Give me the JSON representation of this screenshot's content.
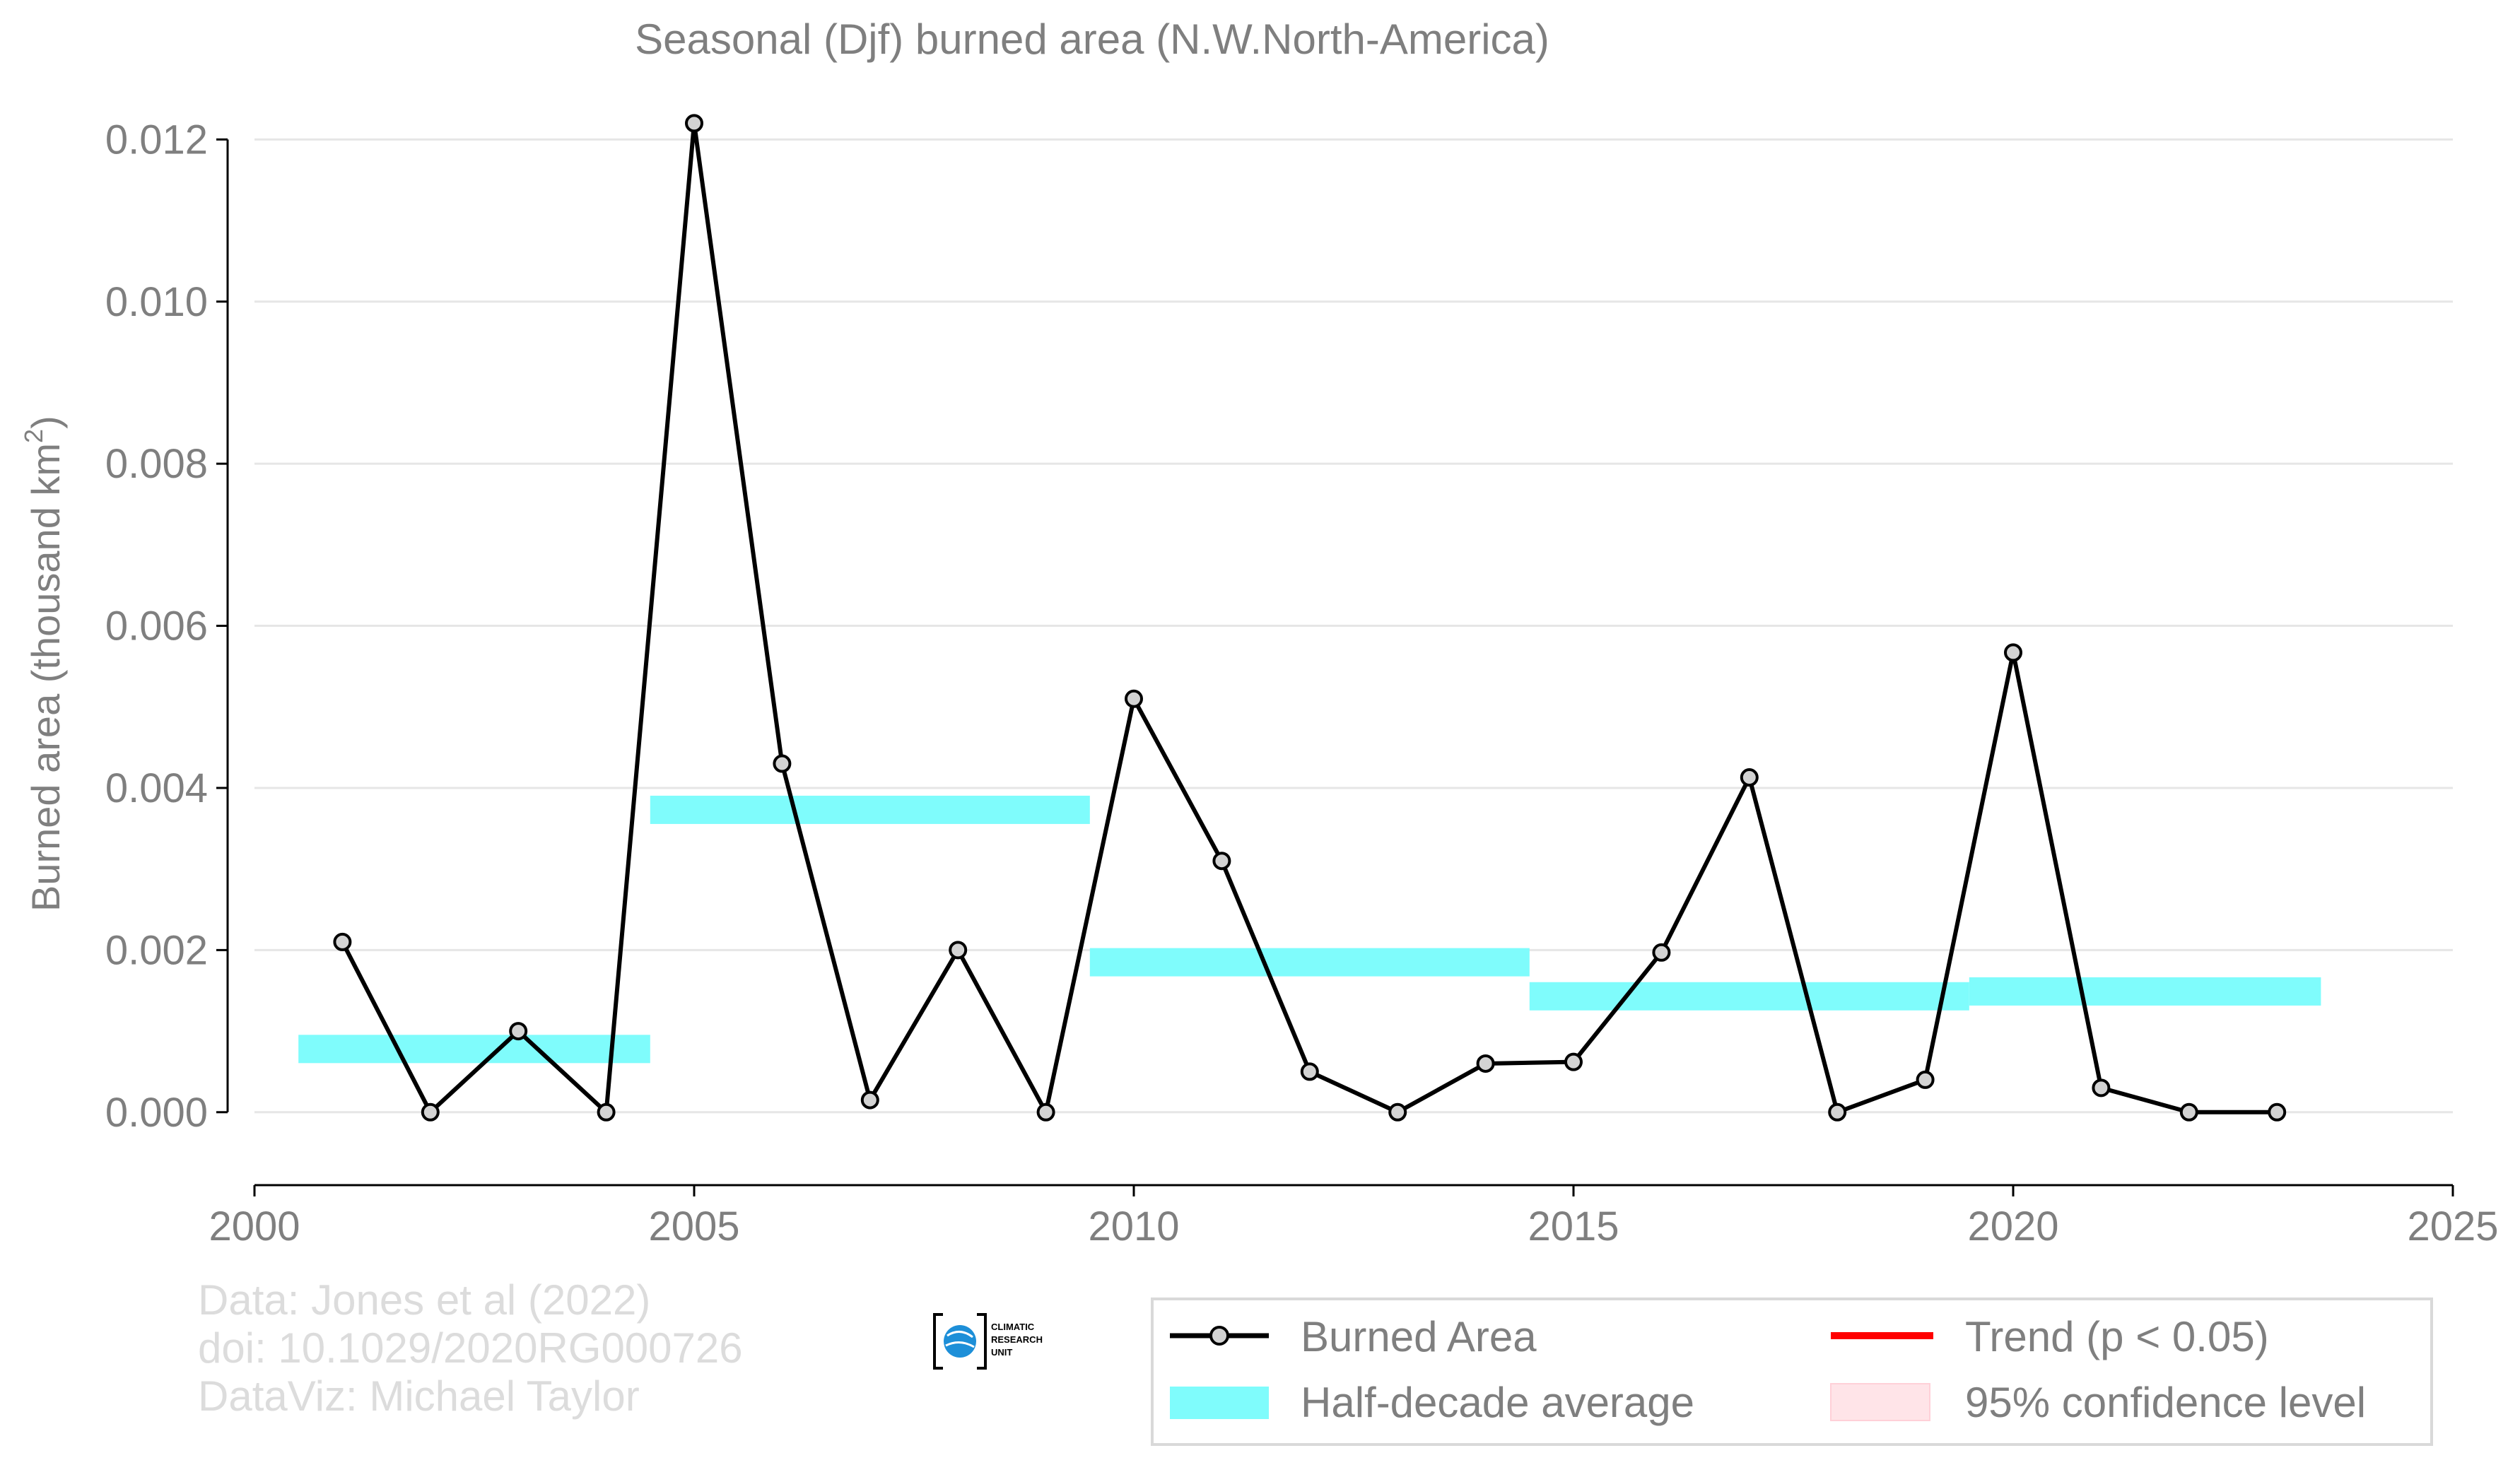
{
  "chart_data": {
    "type": "line",
    "title": "Seasonal (Djf) burned area (N.W.North-America)",
    "ylabel": "Burned area (thousand km",
    "ylabel_sup": "2",
    "ylabel_close": ")",
    "xlim": [
      2000,
      2025
    ],
    "ylim": [
      -0.0009,
      0.0125
    ],
    "x_ticks": [
      2000,
      2005,
      2010,
      2015,
      2020,
      2025
    ],
    "x_tick_labels": [
      "2000",
      "2005",
      "2010",
      "2015",
      "2020",
      "2025"
    ],
    "y_ticks": [
      0.0,
      0.002,
      0.004,
      0.006,
      0.008,
      0.01,
      0.012
    ],
    "y_tick_labels": [
      "0.000",
      "0.002",
      "0.004",
      "0.006",
      "0.008",
      "0.010",
      "0.012"
    ],
    "grid": "horizontal",
    "series": [
      {
        "name": "Burned Area",
        "color": "#000000",
        "marker_fill": "#d3d3d3",
        "x": [
          2001,
          2002,
          2003,
          2004,
          2005,
          2006,
          2007,
          2008,
          2009,
          2010,
          2011,
          2012,
          2013,
          2014,
          2015,
          2016,
          2017,
          2018,
          2019,
          2020,
          2021,
          2022,
          2023
        ],
        "y": [
          0.0021,
          0.0,
          0.001,
          0.0,
          0.0122,
          0.0043,
          0.00015,
          0.002,
          0.0,
          0.0051,
          0.0031,
          0.0005,
          0.0,
          0.0006,
          0.00062,
          0.00197,
          0.00413,
          0.0,
          0.0004,
          0.00567,
          0.0003,
          0.0,
          0.0
        ]
      }
    ],
    "half_decade_average": {
      "name": "Half-decade average",
      "color": "#7ffcfc",
      "segments": [
        {
          "x_start": 2000.5,
          "x_end": 2004.5,
          "y": 0.00078
        },
        {
          "x_start": 2004.5,
          "x_end": 2009.5,
          "y": 0.00373
        },
        {
          "x_start": 2009.5,
          "x_end": 2014.5,
          "y": 0.00185
        },
        {
          "x_start": 2014.5,
          "x_end": 2019.5,
          "y": 0.00143
        },
        {
          "x_start": 2019.5,
          "x_end": 2023.5,
          "y": 0.00149
        }
      ]
    },
    "legend": {
      "placement": "bottom-right",
      "items": [
        {
          "label": "Burned Area",
          "kind": "line-marker",
          "color": "#000000"
        },
        {
          "label": "Trend (p < 0.05)",
          "kind": "line",
          "color": "#ff0000"
        },
        {
          "label": "Half-decade average",
          "kind": "band",
          "color": "#7ffcfc"
        },
        {
          "label": "95% confidence level",
          "kind": "patch",
          "color": "#ffe4e8"
        }
      ]
    }
  },
  "credits": {
    "line1": "Data: Jones et al (2022)",
    "line2": "doi: 10.1029/2020RG000726",
    "line3": "DataViz: Michael Taylor"
  },
  "logo": {
    "line1": "CLIMATIC",
    "line2": "RESEARCH",
    "line3": "UNIT",
    "icon": "cru-globe-icon"
  }
}
